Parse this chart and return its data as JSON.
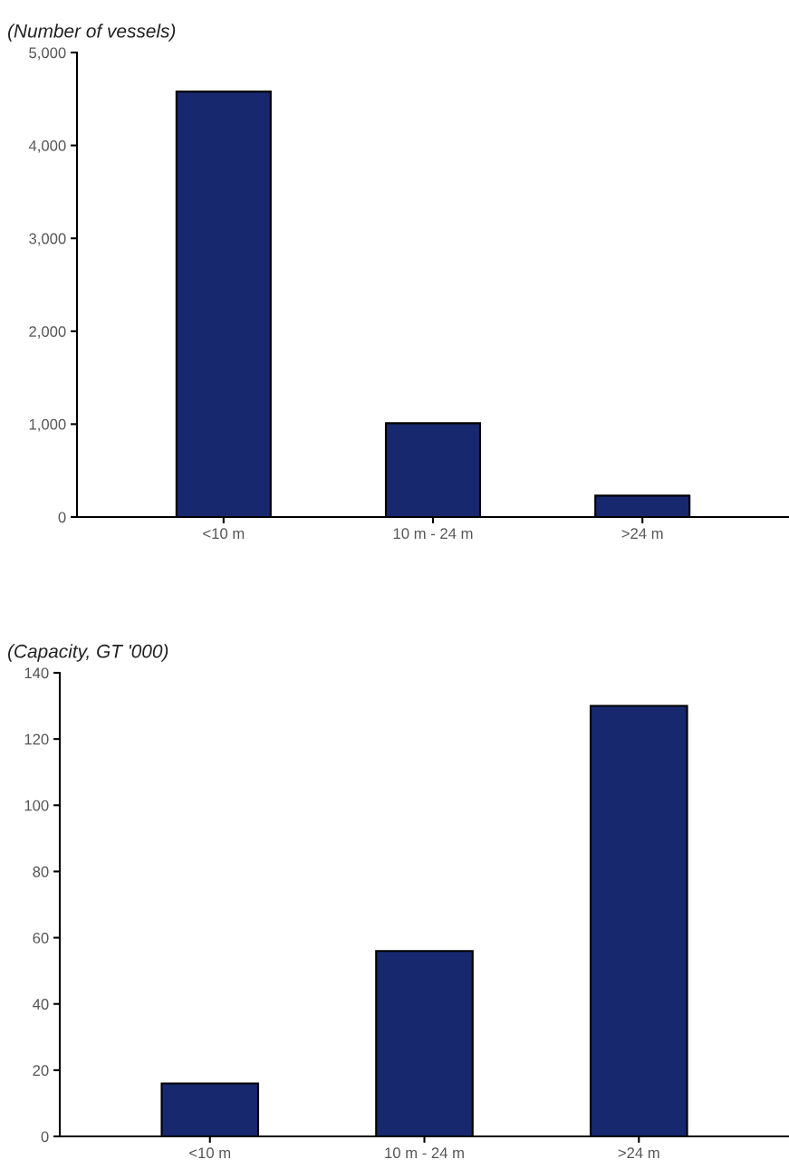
{
  "chart_data": [
    {
      "type": "bar",
      "ylabel": "(Number of vessels)",
      "categories": [
        "<10 m",
        "10 m - 24 m",
        ">24 m"
      ],
      "values": [
        4580,
        1010,
        230
      ],
      "color": "#17286e",
      "ylim": [
        0,
        5000
      ],
      "yticks": [
        0,
        {
          "value": 1000,
          "label": "1,000"
        },
        {
          "value": 2000,
          "label": "2,000"
        },
        {
          "value": 3000,
          "label": "3,000"
        },
        {
          "value": 4000,
          "label": "4,000"
        },
        {
          "value": 5000,
          "label": "5,000"
        }
      ],
      "grid": false,
      "legend": false
    },
    {
      "type": "bar",
      "ylabel": "(Capacity, GT '000)",
      "categories": [
        "<10 m",
        "10 m - 24 m",
        ">24 m"
      ],
      "values": [
        16,
        56,
        130
      ],
      "color": "#17286e",
      "ylim": [
        0,
        140
      ],
      "yticks": [
        0,
        20,
        40,
        60,
        80,
        100,
        120,
        140
      ],
      "grid": false,
      "legend": false
    }
  ]
}
